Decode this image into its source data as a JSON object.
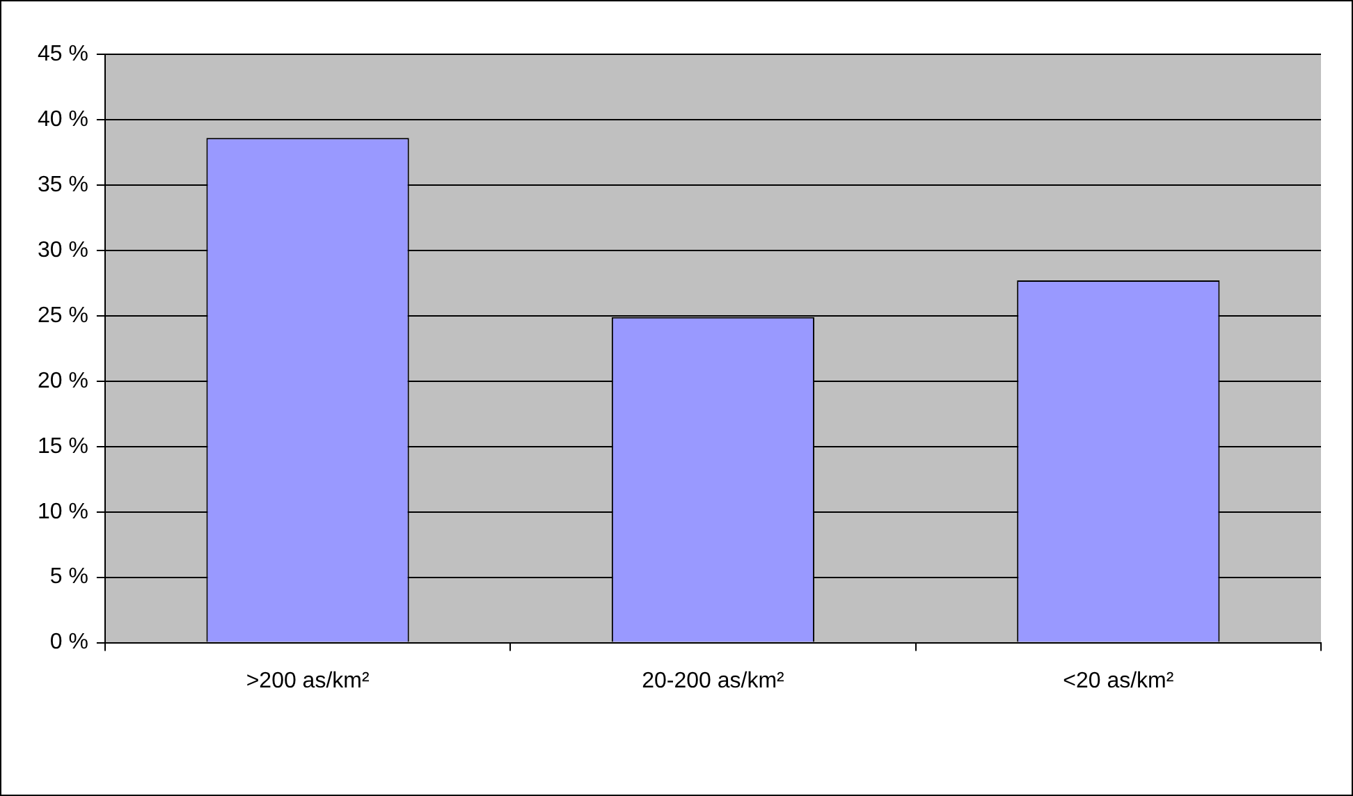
{
  "chart_data": {
    "type": "bar",
    "categories": [
      ">200 as/km²",
      "20-200 as/km²",
      "<20 as/km²"
    ],
    "values": [
      38.6,
      24.9,
      27.7
    ],
    "color": "#9999ff",
    "ylim": [
      0,
      45
    ],
    "yticks": [
      {
        "value": 0,
        "label": "0 %"
      },
      {
        "value": 5,
        "label": "5 %"
      },
      {
        "value": 10,
        "label": "10 %"
      },
      {
        "value": 15,
        "label": "15 %"
      },
      {
        "value": 20,
        "label": "20 %"
      },
      {
        "value": 25,
        "label": "25 %"
      },
      {
        "value": 30,
        "label": "30 %"
      },
      {
        "value": 35,
        "label": "35 %"
      },
      {
        "value": 40,
        "label": "40 %"
      },
      {
        "value": 45,
        "label": "45 %"
      }
    ],
    "grid": "y",
    "legend": false
  }
}
